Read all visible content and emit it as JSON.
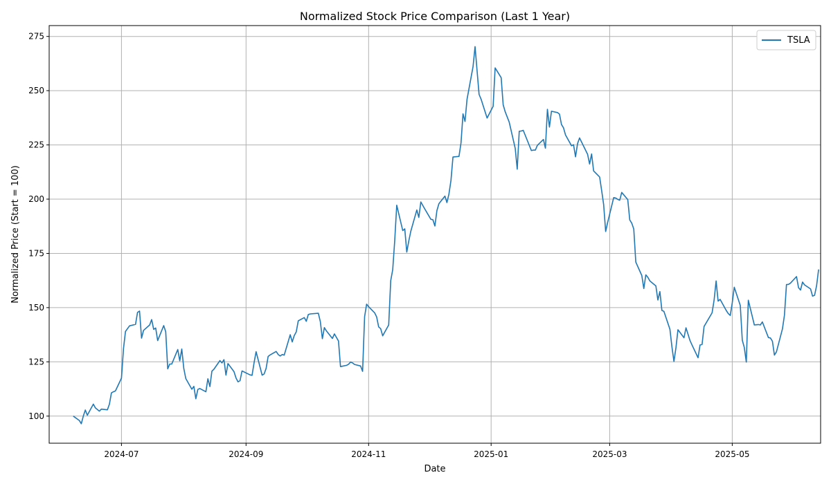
{
  "chart_data": {
    "type": "line",
    "title": "Normalized Stock Price Comparison (Last 1 Year)",
    "xlabel": "Date",
    "ylabel": "Normalized Price (Start = 100)",
    "xlim": [
      "2024-05-26",
      "2025-06-14"
    ],
    "ylim": [
      87.5,
      280
    ],
    "x_ticks": [
      {
        "date": "2024-07-01",
        "label": "2024-07"
      },
      {
        "date": "2024-09-01",
        "label": "2024-09"
      },
      {
        "date": "2024-11-01",
        "label": "2024-11"
      },
      {
        "date": "2025-01-01",
        "label": "2025-01"
      },
      {
        "date": "2025-03-01",
        "label": "2025-03"
      },
      {
        "date": "2025-05-01",
        "label": "2025-05"
      }
    ],
    "y_ticks": [
      100,
      125,
      150,
      175,
      200,
      225,
      250,
      275
    ],
    "grid": true,
    "legend_position": "top-right",
    "series": [
      {
        "name": "TSLA",
        "color": "#1f77b4",
        "points": [
          [
            "2024-06-07",
            100
          ],
          [
            "2024-06-10",
            98
          ],
          [
            "2024-06-11",
            96.5
          ],
          [
            "2024-06-12",
            100
          ],
          [
            "2024-06-13",
            102.8
          ],
          [
            "2024-06-14",
            100.4
          ],
          [
            "2024-06-17",
            105.5
          ],
          [
            "2024-06-18",
            103.8
          ],
          [
            "2024-06-20",
            102.3
          ],
          [
            "2024-06-21",
            103.2
          ],
          [
            "2024-06-24",
            102.9
          ],
          [
            "2024-06-25",
            105.5
          ],
          [
            "2024-06-26",
            110.7
          ],
          [
            "2024-06-27",
            111.2
          ],
          [
            "2024-06-28",
            111.6
          ],
          [
            "2024-07-01",
            117.5
          ],
          [
            "2024-07-02",
            131
          ],
          [
            "2024-07-03",
            139
          ],
          [
            "2024-07-05",
            141.6
          ],
          [
            "2024-07-08",
            142.3
          ],
          [
            "2024-07-09",
            147.8
          ],
          [
            "2024-07-10",
            148.4
          ],
          [
            "2024-07-11",
            135.9
          ],
          [
            "2024-07-12",
            139.5
          ],
          [
            "2024-07-15",
            142
          ],
          [
            "2024-07-16",
            144.5
          ],
          [
            "2024-07-17",
            140
          ],
          [
            "2024-07-18",
            140.6
          ],
          [
            "2024-07-19",
            134.8
          ],
          [
            "2024-07-22",
            141.7
          ],
          [
            "2024-07-23",
            138.9
          ],
          [
            "2024-07-24",
            121.8
          ],
          [
            "2024-07-25",
            124
          ],
          [
            "2024-07-26",
            124
          ],
          [
            "2024-07-29",
            130.7
          ],
          [
            "2024-07-30",
            125.5
          ],
          [
            "2024-07-31",
            130.9
          ],
          [
            "2024-08-01",
            122
          ],
          [
            "2024-08-02",
            117.3
          ],
          [
            "2024-08-05",
            112.4
          ],
          [
            "2024-08-06",
            113.7
          ],
          [
            "2024-08-07",
            108
          ],
          [
            "2024-08-08",
            112.3
          ],
          [
            "2024-08-09",
            112.7
          ],
          [
            "2024-08-12",
            111.2
          ],
          [
            "2024-08-13",
            117.2
          ],
          [
            "2024-08-14",
            113.6
          ],
          [
            "2024-08-15",
            120.7
          ],
          [
            "2024-08-16",
            121.6
          ],
          [
            "2024-08-19",
            125.6
          ],
          [
            "2024-08-20",
            124.5
          ],
          [
            "2024-08-21",
            126
          ],
          [
            "2024-08-22",
            118.9
          ],
          [
            "2024-08-23",
            124.2
          ],
          [
            "2024-08-26",
            120.5
          ],
          [
            "2024-08-27",
            117.6
          ],
          [
            "2024-08-28",
            115.8
          ],
          [
            "2024-08-29",
            116.3
          ],
          [
            "2024-08-30",
            120.8
          ],
          [
            "2024-09-03",
            119
          ],
          [
            "2024-09-04",
            118.8
          ],
          [
            "2024-09-05",
            124.6
          ],
          [
            "2024-09-06",
            129.7
          ],
          [
            "2024-09-09",
            118.9
          ],
          [
            "2024-09-10",
            119.4
          ],
          [
            "2024-09-11",
            122
          ],
          [
            "2024-09-12",
            127.5
          ],
          [
            "2024-09-13",
            128.2
          ],
          [
            "2024-09-16",
            129.8
          ],
          [
            "2024-09-17",
            128.4
          ],
          [
            "2024-09-18",
            127.7
          ],
          [
            "2024-09-19",
            128.4
          ],
          [
            "2024-09-20",
            128.1
          ],
          [
            "2024-09-23",
            137.5
          ],
          [
            "2024-09-24",
            134.2
          ],
          [
            "2024-09-25",
            137.1
          ],
          [
            "2024-09-26",
            138.8
          ],
          [
            "2024-09-27",
            143.9
          ],
          [
            "2024-09-30",
            145.4
          ],
          [
            "2024-10-01",
            143.7
          ],
          [
            "2024-10-02",
            146.8
          ],
          [
            "2024-10-03",
            147.1
          ],
          [
            "2024-10-07",
            147.4
          ],
          [
            "2024-10-08",
            143.5
          ],
          [
            "2024-10-09",
            135.7
          ],
          [
            "2024-10-10",
            140.8
          ],
          [
            "2024-10-11",
            139.3
          ],
          [
            "2024-10-14",
            135.8
          ],
          [
            "2024-10-15",
            137.9
          ],
          [
            "2024-10-17",
            134.6
          ],
          [
            "2024-10-18",
            122.8
          ],
          [
            "2024-10-21",
            123.4
          ],
          [
            "2024-10-22",
            123.9
          ],
          [
            "2024-10-23",
            124.9
          ],
          [
            "2024-10-24",
            124.5
          ],
          [
            "2024-10-25",
            123.8
          ],
          [
            "2024-10-28",
            123.1
          ],
          [
            "2024-10-29",
            120.6
          ],
          [
            "2024-10-30",
            145.8
          ],
          [
            "2024-10-31",
            151.6
          ],
          [
            "2024-11-01",
            150.4
          ],
          [
            "2024-11-04",
            147.6
          ],
          [
            "2024-11-05",
            145.7
          ],
          [
            "2024-11-06",
            141.1
          ],
          [
            "2024-11-07",
            140.3
          ],
          [
            "2024-11-08",
            137
          ],
          [
            "2024-11-11",
            142
          ],
          [
            "2024-11-12",
            162.4
          ],
          [
            "2024-11-13",
            167.5
          ],
          [
            "2024-11-14",
            180.9
          ],
          [
            "2024-11-15",
            197.2
          ],
          [
            "2024-11-18",
            185.5
          ],
          [
            "2024-11-19",
            186.3
          ],
          [
            "2024-11-20",
            175.6
          ],
          [
            "2024-11-21",
            180.7
          ],
          [
            "2024-11-22",
            185.2
          ],
          [
            "2024-11-25",
            195
          ],
          [
            "2024-11-26",
            191.6
          ],
          [
            "2024-11-27",
            198.7
          ],
          [
            "2024-11-29",
            195.4
          ],
          [
            "2024-12-02",
            190.7
          ],
          [
            "2024-12-03",
            190.5
          ],
          [
            "2024-12-04",
            187.6
          ],
          [
            "2024-12-05",
            194.7
          ],
          [
            "2024-12-06",
            197.9
          ],
          [
            "2024-12-09",
            201.4
          ],
          [
            "2024-12-10",
            198.4
          ],
          [
            "2024-12-11",
            202.4
          ],
          [
            "2024-12-12",
            208.6
          ],
          [
            "2024-12-13",
            219.4
          ],
          [
            "2024-12-16",
            219.7
          ],
          [
            "2024-12-17",
            225.9
          ],
          [
            "2024-12-18",
            239.3
          ],
          [
            "2024-12-19",
            235.8
          ],
          [
            "2024-12-20",
            246
          ],
          [
            "2024-12-23",
            261.1
          ],
          [
            "2024-12-24",
            270.3
          ],
          [
            "2024-12-26",
            248.3
          ],
          [
            "2024-12-27",
            246.1
          ],
          [
            "2024-12-30",
            237.4
          ],
          [
            "2024-12-31",
            239.2
          ],
          [
            "2025-01-02",
            242.8
          ],
          [
            "2025-01-03",
            260.5
          ],
          [
            "2025-01-06",
            256
          ],
          [
            "2025-01-07",
            243.5
          ],
          [
            "2025-01-08",
            240.3
          ],
          [
            "2025-01-10",
            235.5
          ],
          [
            "2025-01-13",
            223.4
          ],
          [
            "2025-01-14",
            213.8
          ],
          [
            "2025-01-15",
            231.3
          ],
          [
            "2025-01-16",
            231.4
          ],
          [
            "2025-01-17",
            231.7
          ],
          [
            "2025-01-21",
            222.4
          ],
          [
            "2025-01-22",
            222.6
          ],
          [
            "2025-01-23",
            222.6
          ],
          [
            "2025-01-24",
            224.8
          ],
          [
            "2025-01-27",
            227.5
          ],
          [
            "2025-01-28",
            223.5
          ],
          [
            "2025-01-29",
            241.4
          ],
          [
            "2025-01-30",
            233.2
          ],
          [
            "2025-01-31",
            240.5
          ],
          [
            "2025-02-03",
            239.9
          ],
          [
            "2025-02-04",
            239.2
          ],
          [
            "2025-02-05",
            234.4
          ],
          [
            "2025-02-06",
            232.9
          ],
          [
            "2025-02-07",
            229.6
          ],
          [
            "2025-02-10",
            224.6
          ],
          [
            "2025-02-11",
            225.1
          ],
          [
            "2025-02-12",
            219.5
          ],
          [
            "2025-02-13",
            225.6
          ],
          [
            "2025-02-14",
            228.2
          ],
          [
            "2025-02-18",
            220.7
          ],
          [
            "2025-02-19",
            216.2
          ],
          [
            "2025-02-20",
            220.8
          ],
          [
            "2025-02-21",
            213
          ],
          [
            "2025-02-24",
            210.2
          ],
          [
            "2025-02-25",
            204
          ],
          [
            "2025-02-26",
            197.5
          ],
          [
            "2025-02-27",
            185.1
          ],
          [
            "2025-02-28",
            189.3
          ],
          [
            "2025-03-03",
            200.7
          ],
          [
            "2025-03-04",
            200.5
          ],
          [
            "2025-03-05",
            199.9
          ],
          [
            "2025-03-06",
            199.5
          ],
          [
            "2025-03-07",
            203.1
          ],
          [
            "2025-03-10",
            199.8
          ],
          [
            "2025-03-11",
            190.4
          ],
          [
            "2025-03-12",
            188.9
          ],
          [
            "2025-03-13",
            186.2
          ],
          [
            "2025-03-14",
            171
          ],
          [
            "2025-03-17",
            164.8
          ],
          [
            "2025-03-18",
            158.8
          ],
          [
            "2025-03-19",
            165.1
          ],
          [
            "2025-03-20",
            164
          ],
          [
            "2025-03-21",
            162.3
          ],
          [
            "2025-03-24",
            160
          ],
          [
            "2025-03-25",
            153.5
          ],
          [
            "2025-03-26",
            157.4
          ],
          [
            "2025-03-27",
            148.7
          ],
          [
            "2025-03-28",
            148.3
          ],
          [
            "2025-03-31",
            140
          ],
          [
            "2025-04-01",
            131.9
          ],
          [
            "2025-04-02",
            125.2
          ],
          [
            "2025-04-03",
            131.5
          ],
          [
            "2025-04-04",
            139.8
          ],
          [
            "2025-04-07",
            136.1
          ],
          [
            "2025-04-08",
            140.7
          ],
          [
            "2025-04-09",
            137.8
          ],
          [
            "2025-04-10",
            134.8
          ],
          [
            "2025-04-11",
            132.8
          ],
          [
            "2025-04-14",
            126.9
          ],
          [
            "2025-04-15",
            132.8
          ],
          [
            "2025-04-16",
            133
          ],
          [
            "2025-04-17",
            141.3
          ],
          [
            "2025-04-21",
            147.6
          ],
          [
            "2025-04-22",
            153.5
          ],
          [
            "2025-04-23",
            162.3
          ],
          [
            "2025-04-24",
            153
          ],
          [
            "2025-04-25",
            153.8
          ],
          [
            "2025-04-28",
            148.7
          ],
          [
            "2025-04-29",
            147.3
          ],
          [
            "2025-04-30",
            146.4
          ],
          [
            "2025-05-01",
            152.2
          ],
          [
            "2025-05-02",
            159.4
          ],
          [
            "2025-05-05",
            151
          ],
          [
            "2025-05-06",
            135
          ],
          [
            "2025-05-07",
            131.6
          ],
          [
            "2025-05-08",
            124.9
          ],
          [
            "2025-05-09",
            153.4
          ],
          [
            "2025-05-12",
            142
          ],
          [
            "2025-05-13",
            142.1
          ],
          [
            "2025-05-14",
            142.2
          ],
          [
            "2025-05-15",
            142
          ],
          [
            "2025-05-16",
            143.4
          ],
          [
            "2025-05-19",
            136.2
          ],
          [
            "2025-05-20",
            136
          ],
          [
            "2025-05-21",
            134.5
          ],
          [
            "2025-05-22",
            128.1
          ],
          [
            "2025-05-23",
            129.6
          ],
          [
            "2025-05-26",
            140.2
          ],
          [
            "2025-05-27",
            146.6
          ],
          [
            "2025-05-28",
            160.6
          ],
          [
            "2025-05-29",
            160.7
          ],
          [
            "2025-05-30",
            161.3
          ],
          [
            "2025-06-02",
            164.3
          ],
          [
            "2025-06-03",
            159.2
          ],
          [
            "2025-06-04",
            158.1
          ],
          [
            "2025-06-05",
            161.8
          ],
          [
            "2025-06-06",
            160.5
          ],
          [
            "2025-06-09",
            158.6
          ],
          [
            "2025-06-10",
            155.3
          ],
          [
            "2025-06-11",
            155.7
          ],
          [
            "2025-06-12",
            160.1
          ],
          [
            "2025-06-13",
            167.6
          ]
        ]
      }
    ]
  }
}
